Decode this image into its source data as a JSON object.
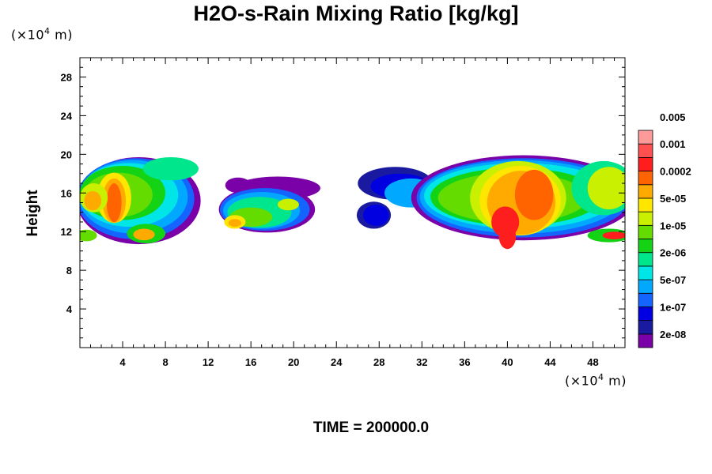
{
  "chart_data": {
    "type": "heatmap",
    "title": "H2O-s-Rain Mixing Ratio [kg/kg]",
    "ylabel": "Height",
    "xlabel": "",
    "x_unit_prefix": "(×10",
    "x_unit_exp": "4",
    "x_unit_suffix": " m)",
    "y_unit_prefix": "(×10",
    "y_unit_exp": "4",
    "y_unit_suffix": " m)",
    "xlim": [
      0,
      51
    ],
    "ylim": [
      0,
      30
    ],
    "x_ticks": [
      4,
      8,
      12,
      16,
      20,
      24,
      28,
      32,
      36,
      40,
      44,
      48
    ],
    "y_ticks": [
      4,
      8,
      12,
      16,
      20,
      24,
      28
    ],
    "time_label": "TIME = 200000.0",
    "legend": {
      "placement": "right",
      "labels": [
        "2e-08",
        "1e-07",
        "5e-07",
        "2e-06",
        "1e-05",
        "5e-05",
        "0.0002",
        "0.001",
        "0.005"
      ],
      "colors": [
        "#7a00a8",
        "#1a1aa0",
        "#0000e0",
        "#1464ff",
        "#00a8ff",
        "#00e6e6",
        "#00e68c",
        "#14d214",
        "#64dc00",
        "#c8f000",
        "#ffe600",
        "#ffaa00",
        "#ff6400",
        "#ff1e1e",
        "#ff5050",
        "#ff9a9a"
      ]
    },
    "contour_regions": [
      {
        "name": "rain-cloud-left",
        "level": 0,
        "x_range": [
          0,
          11
        ],
        "y_range": [
          10.3,
          20
        ]
      },
      {
        "name": "rain-cloud-center",
        "level": 0,
        "x_range": [
          13,
          24
        ],
        "y_range": [
          11,
          18
        ]
      },
      {
        "name": "rain-cloud-right",
        "level": 0,
        "x_range": [
          25,
          51
        ],
        "y_range": [
          10,
          20
        ]
      }
    ]
  }
}
